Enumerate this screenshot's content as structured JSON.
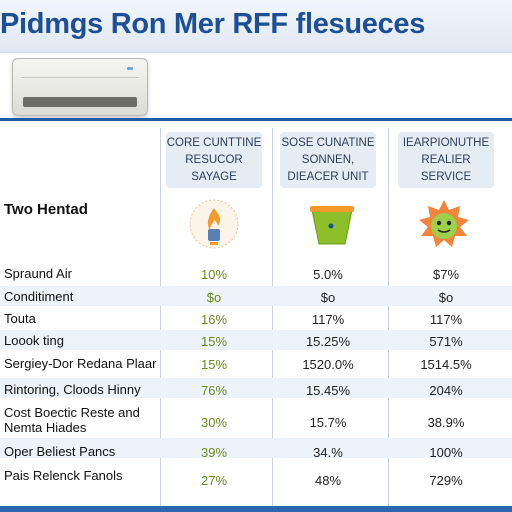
{
  "header": {
    "title": "Pidmgs Ron Mer RFF flesueces"
  },
  "columns": [
    {
      "lines": [
        "CORE CUNTTINE",
        "RESUCOR",
        "SAYAGE"
      ],
      "icon": "water-heater-flame-icon"
    },
    {
      "lines": [
        "SOSE CUNATINE",
        "SONNEN,",
        "DIEACER UNIT"
      ],
      "icon": "green-cup-icon"
    },
    {
      "lines": [
        "IEARPIONUTHE",
        "REALIER",
        "SERVICE"
      ],
      "icon": "orange-character-icon"
    }
  ],
  "section_label": "Two Hentad",
  "rows": [
    {
      "label": "Spraund Air",
      "values": [
        "10%",
        "5.0%",
        "$7%"
      ]
    },
    {
      "label": "Conditiment",
      "values": [
        "$o",
        "$o",
        "$o"
      ]
    },
    {
      "label": "Touta",
      "values": [
        "16%",
        "117%",
        "117%"
      ]
    },
    {
      "label": "Loook ting",
      "values": [
        "15%",
        "15.25%",
        "571%"
      ]
    },
    {
      "label": "Sergiey-Dor Redana Plaar",
      "values": [
        "15%",
        "1520.0%",
        "1514.5%"
      ]
    },
    {
      "label": "Rintoring, Cloods Hinny",
      "values": [
        "76%",
        "15.45%",
        "204%"
      ]
    },
    {
      "label": "Cost Boectic Reste and Nemta Hiades",
      "values": [
        "30%",
        "15.7%",
        "38.9%"
      ]
    },
    {
      "label": "Oper Beliest Pancs",
      "values": [
        "39%",
        "34.%",
        "100%"
      ]
    },
    {
      "label": "Pais Relenck Fanols",
      "values": [
        "27%",
        "48%",
        "729%"
      ]
    }
  ],
  "colors": {
    "title": "#1d4f96",
    "rule": "#1d5aa6",
    "accent_green": "#6a8a1e"
  }
}
